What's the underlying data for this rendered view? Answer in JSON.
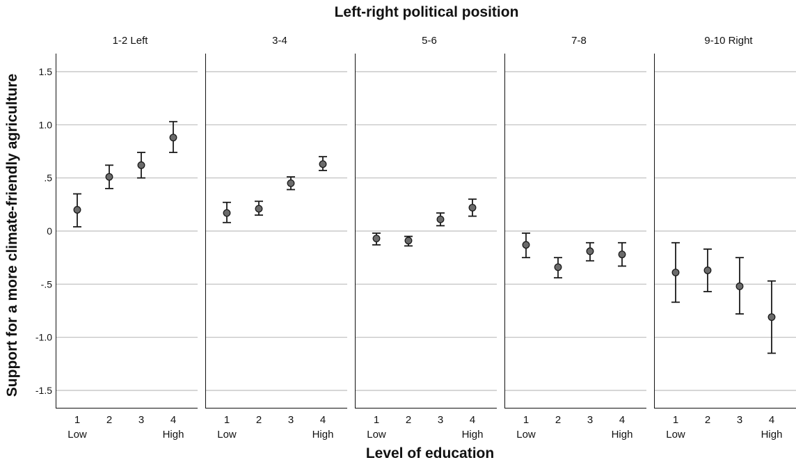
{
  "chart_data": {
    "type": "scatter",
    "title": "Left-right political position",
    "xlabel": "Level of education",
    "ylabel": "Support for a more climate-friendly agriculture",
    "ylim": [
      -1.65,
      1.65
    ],
    "y_ticks": [
      {
        "value": 1.5,
        "label": "1.5"
      },
      {
        "value": 1.0,
        "label": "1.0"
      },
      {
        "value": 0.5,
        "label": ".5"
      },
      {
        "value": 0,
        "label": "0"
      },
      {
        "value": -0.5,
        "label": "-.5"
      },
      {
        "value": -1.0,
        "label": "-1.0"
      },
      {
        "value": -1.5,
        "label": "-1.5"
      }
    ],
    "x": [
      1,
      2,
      3,
      4
    ],
    "x_tick_labels": [
      "1",
      "2",
      "3",
      "4"
    ],
    "x_tick_sublabels": [
      "Low",
      "",
      "",
      "High"
    ],
    "grid": true,
    "error_bars": true,
    "marker_color": "#6b6b6b",
    "panels": [
      {
        "label": "1-2 Left",
        "values": [
          0.2,
          0.51,
          0.62,
          0.88
        ],
        "lower": [
          0.04,
          0.4,
          0.5,
          0.74
        ],
        "upper": [
          0.35,
          0.62,
          0.74,
          1.03
        ]
      },
      {
        "label": "3-4",
        "values": [
          0.17,
          0.21,
          0.45,
          0.63
        ],
        "lower": [
          0.08,
          0.15,
          0.39,
          0.57
        ],
        "upper": [
          0.27,
          0.28,
          0.51,
          0.7
        ]
      },
      {
        "label": "5-6",
        "values": [
          -0.07,
          -0.09,
          0.11,
          0.22
        ],
        "lower": [
          -0.13,
          -0.14,
          0.05,
          0.14
        ],
        "upper": [
          -0.02,
          -0.05,
          0.17,
          0.3
        ]
      },
      {
        "label": "7-8",
        "values": [
          -0.13,
          -0.34,
          -0.19,
          -0.22
        ],
        "lower": [
          -0.25,
          -0.44,
          -0.28,
          -0.33
        ],
        "upper": [
          -0.02,
          -0.25,
          -0.11,
          -0.11
        ]
      },
      {
        "label": "9-10 Right",
        "values": [
          -0.39,
          -0.37,
          -0.52,
          -0.81
        ],
        "lower": [
          -0.67,
          -0.57,
          -0.78,
          -1.15
        ],
        "upper": [
          -0.11,
          -0.17,
          -0.25,
          -0.47
        ]
      }
    ]
  }
}
